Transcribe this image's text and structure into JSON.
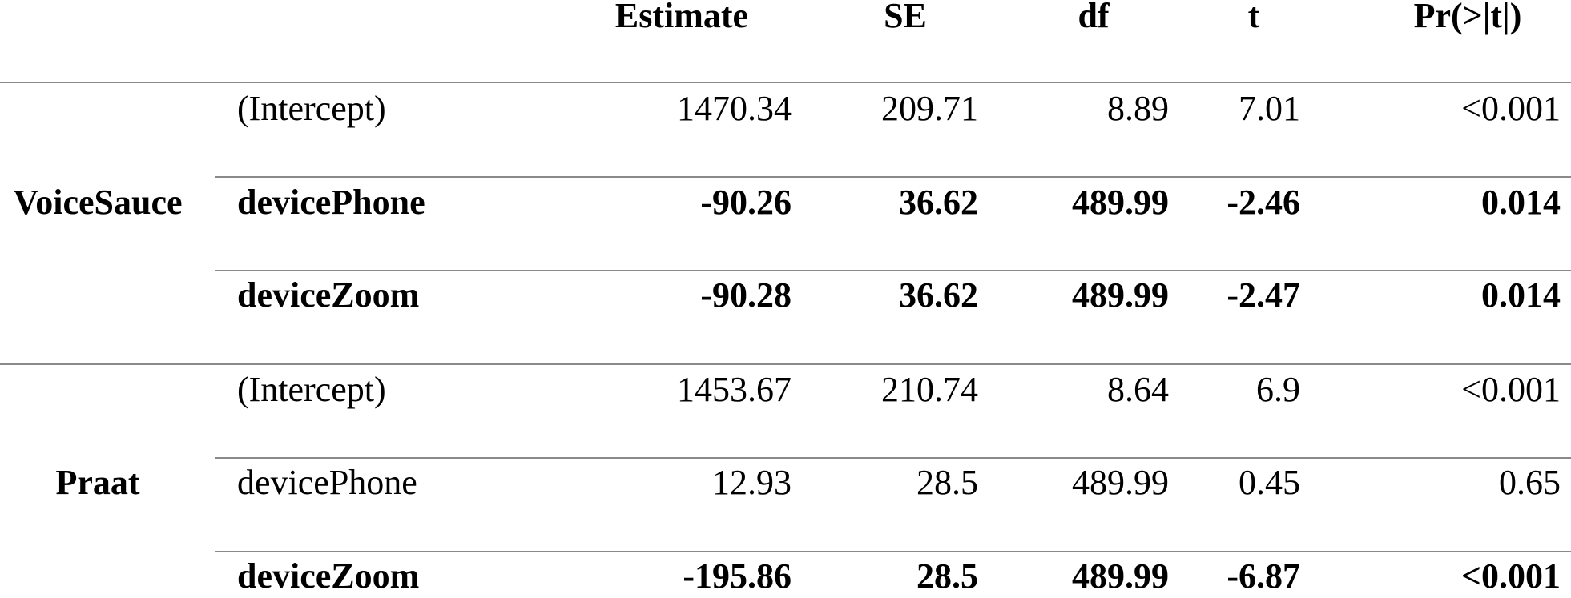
{
  "headers": [
    "",
    "Estimate",
    "SE",
    "df",
    "t",
    "Pr(>|t|)"
  ],
  "groups": [
    {
      "label": "VoiceSauce",
      "rows": [
        {
          "term": "(Intercept)",
          "estimate": "1470.34",
          "se": "209.71",
          "df": "8.89",
          "t": "7.01",
          "p": "<0.001",
          "bold": false
        },
        {
          "term": "devicePhone",
          "estimate": "-90.26",
          "se": "36.62",
          "df": "489.99",
          "t": "-2.46",
          "p": "0.014",
          "bold": true
        },
        {
          "term": "deviceZoom",
          "estimate": "-90.28",
          "se": "36.62",
          "df": "489.99",
          "t": "-2.47",
          "p": "0.014",
          "bold": true
        }
      ]
    },
    {
      "label": "Praat",
      "rows": [
        {
          "term": "(Intercept)",
          "estimate": "1453.67",
          "se": "210.74",
          "df": "8.64",
          "t": "6.9",
          "p": "<0.001",
          "bold": false
        },
        {
          "term": "devicePhone",
          "estimate": "12.93",
          "se": "28.5",
          "df": "489.99",
          "t": "0.45",
          "p": "0.65",
          "bold": false
        },
        {
          "term": "deviceZoom",
          "estimate": "-195.86",
          "se": "28.5",
          "df": "489.99",
          "t": "-6.87",
          "p": "<0.001",
          "bold": true
        }
      ]
    }
  ]
}
